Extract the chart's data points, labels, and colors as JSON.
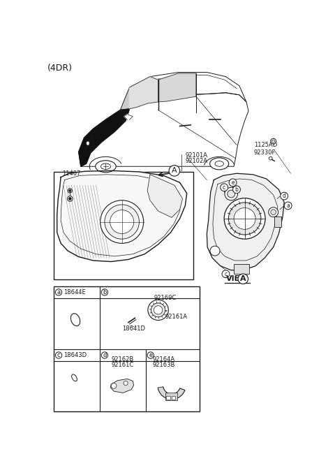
{
  "title": "(4DR)",
  "bg_color": "#ffffff",
  "lc": "#1a1a1a",
  "parts": {
    "11407": "11407",
    "92101A": "92101A",
    "92102A": "92102A",
    "1125AD": "1125AD",
    "92330F": "92330F",
    "18644E": "18644E",
    "18643D": "18643D",
    "92169C": "92169C",
    "92161A": "92161A",
    "18641D": "18641D",
    "92162B": "92162B",
    "92161C": "92161C",
    "92164A": "92164A",
    "92163B": "92163B",
    "VIEW": "VIEW",
    "A": "A"
  }
}
